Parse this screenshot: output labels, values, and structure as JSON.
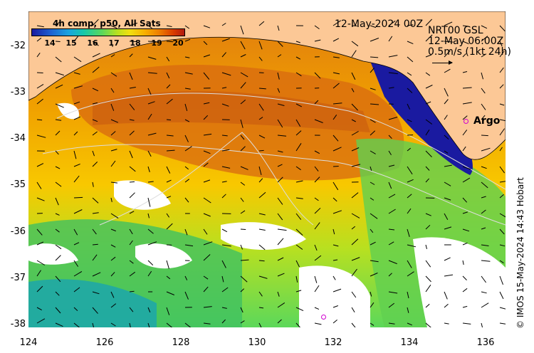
{
  "colorbar": {
    "title": "4h comp, p50, All Sats",
    "ticks": [
      "14",
      "15",
      "16",
      "17",
      "18",
      "19",
      "20"
    ],
    "range": [
      13.5,
      20.5
    ],
    "colors": [
      "#1a1aa0",
      "#19a4e0",
      "#5cd85a",
      "#f0e010",
      "#f8b000",
      "#d83a00",
      "#b01a10"
    ]
  },
  "header": {
    "date": "12-May-2024 00Z",
    "product_line1": "NRT00 GSL",
    "product_line2": "12-May 06:00Z",
    "product_line3": "0.5m/s (1kt 24h)"
  },
  "argo": {
    "label": "Argo",
    "color": "#d000d0"
  },
  "axes": {
    "y_ticks": [
      "-32",
      "-33",
      "-34",
      "-35",
      "-36",
      "-37",
      "-38"
    ],
    "x_ticks": [
      "124",
      "126",
      "128",
      "130",
      "132",
      "134",
      "136"
    ],
    "lon_range": [
      124,
      136.5
    ],
    "lat_range": [
      -38.1,
      -31.4
    ]
  },
  "colors": {
    "land": "#fcc896",
    "cloud": "#ffffff",
    "warm": "#e07a10",
    "cool": "#5cd85a"
  },
  "credit": "© IMOS 15-May-2024 14:43 Hobart"
}
